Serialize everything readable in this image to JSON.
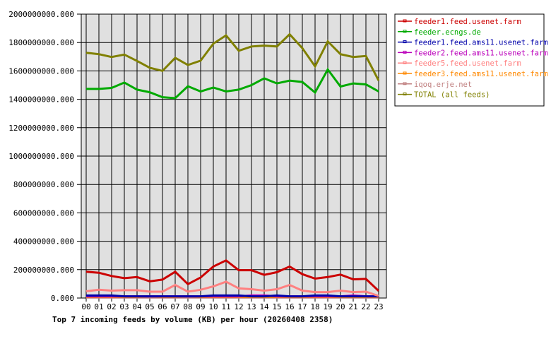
{
  "chart_data": {
    "type": "line",
    "title": "Top 7 incoming feeds by volume (KB) per hour (20260408 2358)",
    "xlabel": "",
    "ylabel": "",
    "ylim": [
      0,
      2000000000
    ],
    "grid": true,
    "legend_position": "right",
    "y_ticks": [
      "0.000",
      "200000000.000",
      "400000000.000",
      "600000000.000",
      "800000000.000",
      "1000000000.000",
      "1200000000.000",
      "1400000000.000",
      "1600000000.000",
      "1800000000.000",
      "2000000000.000"
    ],
    "categories": [
      "00",
      "01",
      "02",
      "03",
      "04",
      "05",
      "06",
      "07",
      "08",
      "09",
      "10",
      "11",
      "12",
      "13",
      "14",
      "15",
      "16",
      "17",
      "18",
      "19",
      "20",
      "21",
      "22",
      "23"
    ],
    "series": [
      {
        "name": "feeder1.feed.usenet.farm",
        "color": "#cc0000",
        "values": [
          185000000,
          178000000,
          155000000,
          140000000,
          148000000,
          118000000,
          130000000,
          185000000,
          98000000,
          145000000,
          222000000,
          265000000,
          196000000,
          196000000,
          163000000,
          182000000,
          222000000,
          168000000,
          137000000,
          148000000,
          165000000,
          132000000,
          135000000,
          50000000
        ]
      },
      {
        "name": "feeder.ecngs.de",
        "color": "#00aa00",
        "values": [
          1473000000,
          1473000000,
          1480000000,
          1518000000,
          1468000000,
          1450000000,
          1415000000,
          1408000000,
          1492000000,
          1455000000,
          1483000000,
          1455000000,
          1468000000,
          1500000000,
          1548000000,
          1512000000,
          1532000000,
          1522000000,
          1448000000,
          1610000000,
          1490000000,
          1512000000,
          1505000000,
          1455000000
        ]
      },
      {
        "name": "feeder1.feed.ams11.usenet.farm",
        "color": "#0000aa",
        "values": [
          18000000,
          18000000,
          18000000,
          12000000,
          12000000,
          12000000,
          12000000,
          12000000,
          12000000,
          12000000,
          18000000,
          18000000,
          18000000,
          12000000,
          12000000,
          18000000,
          12000000,
          12000000,
          18000000,
          18000000,
          12000000,
          12000000,
          12000000,
          12000000
        ]
      },
      {
        "name": "feeder2.feed.ams11.usenet.farm",
        "color": "#bb00bb",
        "values": [
          12000000,
          12000000,
          12000000,
          12000000,
          12000000,
          12000000,
          12000000,
          12000000,
          12000000,
          12000000,
          12000000,
          12000000,
          12000000,
          18000000,
          18000000,
          12000000,
          12000000,
          12000000,
          12000000,
          12000000,
          12000000,
          18000000,
          12000000,
          12000000
        ]
      },
      {
        "name": "feeder5.feed.usenet.farm",
        "color": "#ff8080",
        "values": [
          48000000,
          58000000,
          52000000,
          55000000,
          55000000,
          45000000,
          45000000,
          92000000,
          45000000,
          58000000,
          82000000,
          115000000,
          68000000,
          62000000,
          52000000,
          62000000,
          92000000,
          52000000,
          42000000,
          42000000,
          52000000,
          42000000,
          45000000,
          15000000
        ]
      },
      {
        "name": "feeder3.feed.ams11.usenet.farm",
        "color": "#ff8800",
        "values": [
          8000000,
          8000000,
          8000000,
          8000000,
          8000000,
          12000000,
          8000000,
          8000000,
          12000000,
          8000000,
          8000000,
          8000000,
          8000000,
          8000000,
          8000000,
          8000000,
          8000000,
          8000000,
          8000000,
          8000000,
          8000000,
          8000000,
          8000000,
          8000000
        ]
      },
      {
        "name": "iqoq.erje.net",
        "color": "#c08080",
        "values": [
          4000000,
          4000000,
          4000000,
          4000000,
          4000000,
          4000000,
          4000000,
          4000000,
          4000000,
          4000000,
          4000000,
          4000000,
          4000000,
          4000000,
          4000000,
          4000000,
          4000000,
          4000000,
          4000000,
          4000000,
          4000000,
          4000000,
          4000000,
          4000000
        ]
      },
      {
        "name": "TOTAL (all feeds)",
        "color": "#808000",
        "values": [
          1728000000,
          1718000000,
          1698000000,
          1715000000,
          1670000000,
          1622000000,
          1600000000,
          1692000000,
          1642000000,
          1672000000,
          1792000000,
          1850000000,
          1742000000,
          1772000000,
          1778000000,
          1772000000,
          1858000000,
          1760000000,
          1632000000,
          1808000000,
          1718000000,
          1698000000,
          1705000000,
          1532000000
        ]
      }
    ]
  },
  "legend": {
    "items": [
      "feeder1.feed.usenet.farm",
      "feeder.ecngs.de",
      "feeder1.feed.ams11.usenet.farm",
      "feeder2.feed.ams11.usenet.farm",
      "feeder5.feed.usenet.farm",
      "feeder3.feed.ams11.usenet.farm",
      "iqoq.erje.net",
      "TOTAL (all feeds)"
    ]
  },
  "colors": {
    "plot_background": "#e0e0e0",
    "grid": "#000000"
  }
}
